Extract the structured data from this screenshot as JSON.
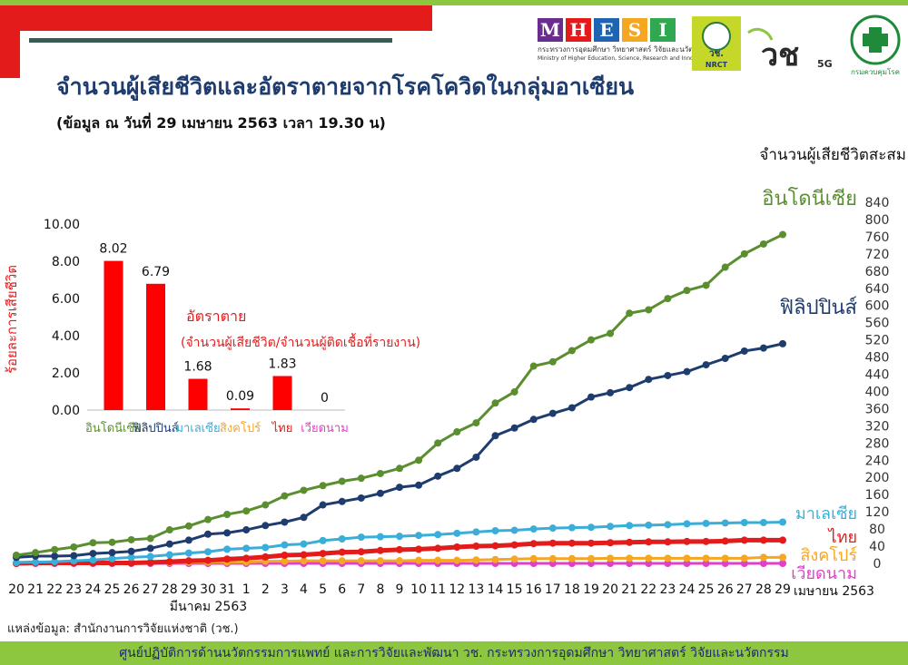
{
  "header": {
    "title": "จำนวนผู้เสียชีวิตและอัตราตายจากโรคโควิดในกลุ่มอาเซียน",
    "subtitle": "(ข้อมูล ณ วันที่ 29 เมษายน 2563 เวลา 19.30 น)"
  },
  "logos": {
    "mhesi_letters": [
      "M",
      "H",
      "E",
      "S",
      "I"
    ],
    "mhesi_colors": [
      "#6a2d8f",
      "#e31b1b",
      "#1f63b3",
      "#f5a623",
      "#2fa84f"
    ],
    "mhesi_line1": "กระทรวงการอุดมศึกษา วิทยาศาสตร์ วิจัยและนวัตกรรม",
    "mhesi_line2": "Ministry of Higher Education, Science, Research and Innovation",
    "nrct_top": "วช.",
    "nrct_bottom": "NRCT",
    "vc_text": "วช",
    "vc_5g": "5G",
    "ddc_label": "กรมควบคุมโรค"
  },
  "source": "แหล่งข้อมูล: สำนักงานการวิจัยแห่งชาติ (วช.)",
  "footer": "ศูนย์ปฏิบัติการด้านนวัตกรรมการแพทย์ และการวิจัยและพัฒนา วช.   กระทรวงการอุดมศึกษา วิทยาศาสตร์ วิจัยและนวัตกรรม",
  "chart_data": [
    {
      "type": "line",
      "title": "",
      "ylabel": "จำนวนผู้เสียชีวิตสะสม",
      "ylim": [
        0,
        840
      ],
      "yticks": [
        "0",
        "40",
        "80",
        "120",
        "160",
        "200",
        "240",
        "280",
        "320",
        "360",
        "400",
        "440",
        "480",
        "520",
        "560",
        "600",
        "640",
        "680",
        "720",
        "760",
        "800",
        "840"
      ],
      "x": [
        "20",
        "21",
        "22",
        "23",
        "24",
        "25",
        "26",
        "27",
        "28",
        "29",
        "30",
        "31",
        "1",
        "2",
        "3",
        "4",
        "5",
        "6",
        "7",
        "8",
        "9",
        "10",
        "11",
        "12",
        "13",
        "14",
        "15",
        "16",
        "17",
        "18",
        "19",
        "20",
        "21",
        "22",
        "23",
        "24",
        "25",
        "26",
        "27",
        "28",
        "29"
      ],
      "x_group_labels": {
        "march": "มีนาคม 2563",
        "april": "เมษายน 2563"
      },
      "series": [
        {
          "name": "อินโดนีเซีย",
          "color": "#5a8e2e",
          "values": [
            19,
            25,
            32,
            38,
            48,
            49,
            55,
            58,
            78,
            87,
            102,
            114,
            122,
            136,
            157,
            170,
            181,
            191,
            198,
            209,
            221,
            240,
            280,
            306,
            327,
            373,
            399,
            459,
            469,
            495,
            520,
            535,
            582,
            590,
            616,
            635,
            647,
            689,
            720,
            743,
            765
          ]
        },
        {
          "name": "ฟิลิปปินส์",
          "color": "#1f3c6e",
          "values": [
            14,
            17,
            17,
            18,
            23,
            25,
            28,
            35,
            45,
            54,
            68,
            71,
            78,
            88,
            96,
            107,
            136,
            144,
            152,
            163,
            177,
            182,
            203,
            221,
            247,
            297,
            315,
            335,
            349,
            362,
            387,
            397,
            409,
            428,
            437,
            446,
            462,
            477,
            494,
            501,
            511
          ]
        },
        {
          "name": "มาเลเซีย",
          "color": "#3aaed8",
          "values": [
            2,
            3,
            4,
            6,
            8,
            11,
            14,
            16,
            20,
            24,
            27,
            33,
            35,
            37,
            43,
            45,
            53,
            57,
            61,
            62,
            63,
            65,
            67,
            70,
            73,
            76,
            77,
            80,
            82,
            83,
            84,
            86,
            88,
            89,
            90,
            92,
            93,
            94,
            95,
            95,
            96
          ]
        },
        {
          "name": "ไทย",
          "color": "#e31b1b",
          "values": [
            0,
            1,
            1,
            1,
            1,
            1,
            1,
            2,
            4,
            6,
            7,
            10,
            12,
            15,
            19,
            20,
            23,
            26,
            27,
            30,
            32,
            33,
            35,
            38,
            40,
            41,
            43,
            46,
            47,
            47,
            47,
            48,
            49,
            50,
            50,
            51,
            51,
            52,
            54,
            54,
            54
          ]
        },
        {
          "name": "สิงคโปร์",
          "color": "#f5a623",
          "values": [
            0,
            2,
            2,
            2,
            2,
            2,
            2,
            2,
            2,
            3,
            3,
            3,
            3,
            5,
            5,
            6,
            6,
            6,
            6,
            6,
            6,
            7,
            7,
            7,
            8,
            9,
            10,
            11,
            11,
            11,
            11,
            12,
            12,
            12,
            12,
            12,
            12,
            12,
            12,
            14,
            14
          ]
        },
        {
          "name": "เวียดนาม",
          "color": "#e040c8",
          "values": [
            0,
            0,
            0,
            0,
            0,
            0,
            0,
            0,
            0,
            0,
            0,
            0,
            0,
            0,
            0,
            0,
            0,
            0,
            0,
            0,
            0,
            0,
            0,
            0,
            0,
            0,
            0,
            0,
            0,
            0,
            0,
            0,
            0,
            0,
            0,
            0,
            0,
            0,
            0,
            0,
            0
          ]
        }
      ]
    },
    {
      "type": "bar",
      "title": "อัตราตาย",
      "subtitle": "(จำนวนผู้เสียชีวิต/จำนวนผู้ติดเชื้อที่รายงาน)",
      "ylabel": "ร้อยละการเสียชีวิต",
      "ylim": [
        0,
        10
      ],
      "yticks": [
        "0.00",
        "2.00",
        "4.00",
        "6.00",
        "8.00",
        "10.00"
      ],
      "categories": [
        "อินโดนีเซีย",
        "ฟิลิปปินส์",
        "มาเลเซีย",
        "สิงคโปร์",
        "ไทย",
        "เวียดนาม"
      ],
      "category_colors": [
        "#5a8e2e",
        "#1f3c6e",
        "#3aaed8",
        "#f5a623",
        "#e31b1b",
        "#e040c8"
      ],
      "values": [
        8.02,
        6.79,
        1.68,
        0.09,
        1.83,
        0
      ],
      "value_labels": [
        "8.02",
        "6.79",
        "1.68",
        "0.09",
        "1.83",
        "0"
      ],
      "bar_color": "#ff0000"
    }
  ]
}
